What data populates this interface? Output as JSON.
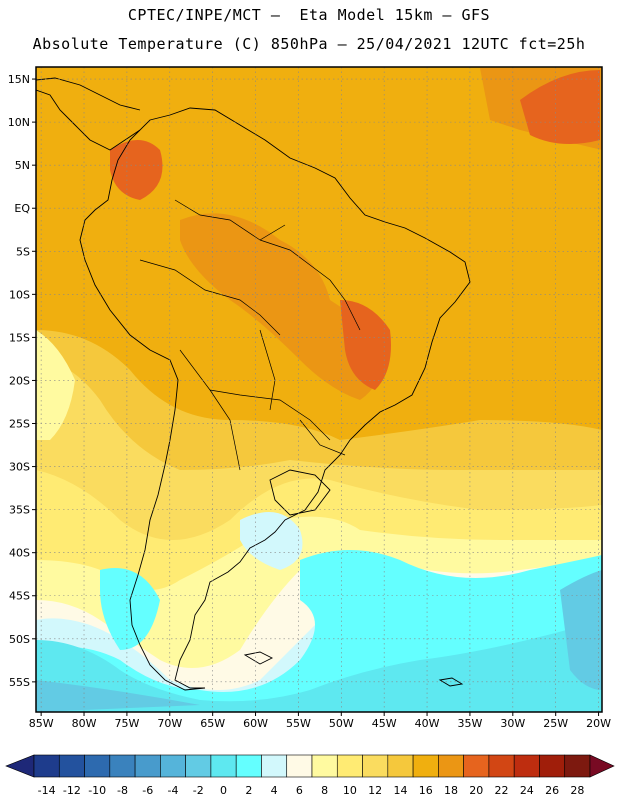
{
  "titles": {
    "line1": "CPTEC/INPE/MCT –  Eta Model 15km – GFS",
    "line2": "Absolute Temperature (C) 850hPa – 25/04/2021 12UTC fct=25h"
  },
  "axes": {
    "lat_labels": [
      "15N",
      "10N",
      "5N",
      "EQ",
      "5S",
      "10S",
      "15S",
      "20S",
      "25S",
      "30S",
      "35S",
      "40S",
      "45S",
      "50S",
      "55S"
    ],
    "lon_labels": [
      "85W",
      "80W",
      "75W",
      "70W",
      "65W",
      "60W",
      "55W",
      "50W",
      "45W",
      "40W",
      "35W",
      "30W",
      "25W",
      "20W"
    ]
  },
  "colorbar": {
    "labels": [
      "-14",
      "-12",
      "-10",
      "-8",
      "-6",
      "-4",
      "-2",
      "0",
      "2",
      "4",
      "6",
      "8",
      "10",
      "12",
      "14",
      "16",
      "18",
      "20",
      "22",
      "24",
      "26",
      "28"
    ],
    "colors": [
      "#1e3c8c",
      "#23529e",
      "#2d6aaf",
      "#3a82bd",
      "#489bcc",
      "#55b4da",
      "#62cbe4",
      "#5ee8f0",
      "#64ffff",
      "#d2f8fc",
      "#fffae6",
      "#fffaa0",
      "#ffeb73",
      "#fadc5f",
      "#f5c83c",
      "#f0af0f",
      "#eb9614",
      "#e6641e",
      "#d24614",
      "#be2d0f",
      "#a01e0a",
      "#7d190f"
    ],
    "under_color": "#1e2878",
    "over_color": "#780a23"
  },
  "colors": {
    "frame": "#000000",
    "grid": "#888888",
    "coast": "#000000"
  }
}
